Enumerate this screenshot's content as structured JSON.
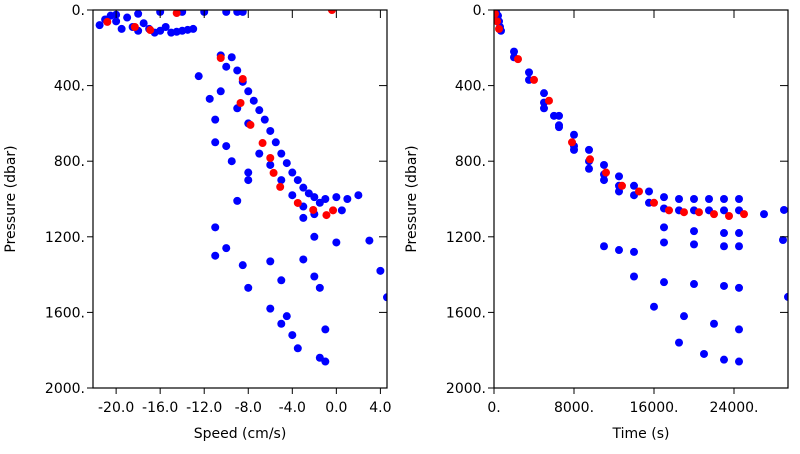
{
  "chart_data": [
    {
      "type": "scatter",
      "xlabel": "Speed (cm/s)",
      "ylabel": "Pressure (dbar)",
      "xlim": [
        -22.1,
        4.6
      ],
      "ylim": [
        0,
        2000
      ],
      "y_inverted": true,
      "xticks": [
        {
          "value": -20,
          "label": "-20.0"
        },
        {
          "value": -16,
          "label": "-16.0"
        },
        {
          "value": -12,
          "label": "-12.0"
        },
        {
          "value": -8,
          "label": "-8.0"
        },
        {
          "value": -4,
          "label": "-4.0"
        },
        {
          "value": 0,
          "label": "0.0"
        },
        {
          "value": 4,
          "label": "4.0"
        }
      ],
      "yticks": [
        {
          "value": 0,
          "label": "0."
        },
        {
          "value": 400,
          "label": "400."
        },
        {
          "value": 800,
          "label": "800."
        },
        {
          "value": 1200,
          "label": "1200."
        },
        {
          "value": 1600,
          "label": "1600."
        },
        {
          "value": 2000,
          "label": "2000."
        }
      ],
      "series": [
        {
          "color": "#0000ff",
          "x": [
            -21.5,
            -21,
            -20.5,
            -20,
            -19.5,
            -19,
            -18.5,
            -18,
            -17.5,
            -17,
            -16.5,
            -16,
            -15.5,
            -15,
            -14.5,
            -14,
            -13.5,
            -13,
            -16,
            -14,
            -12,
            -10,
            -9,
            -8.5,
            -20,
            -18,
            -10.5,
            -9.5,
            -10,
            -9,
            -8.5,
            -8,
            -7.5,
            -7,
            -6.5,
            -6,
            -5.5,
            -5,
            -4.5,
            -4,
            -3.5,
            -3,
            -2.5,
            -2,
            -1,
            0,
            1,
            2,
            0.5,
            -1.5,
            -6,
            -7,
            -5,
            -8,
            -9,
            -4,
            -3,
            -2,
            -12.5,
            -11.5,
            -11,
            -11,
            -10,
            -9.5,
            -10.5,
            -8,
            -8,
            -9,
            -11,
            -10,
            -11,
            -8.5,
            -8,
            -6,
            -5,
            -6,
            -4.5,
            -4,
            -3.5,
            -5,
            -2,
            -3,
            -2,
            -1.5,
            -1,
            -1,
            -1.5,
            0,
            -3,
            3,
            4,
            4.6
          ],
          "values": [
            80,
            50,
            30,
            60,
            100,
            40,
            90,
            110,
            70,
            100,
            120,
            110,
            90,
            120,
            115,
            110,
            105,
            100,
            10,
            10,
            10,
            10,
            10,
            10,
            25,
            20,
            240,
            250,
            300,
            320,
            380,
            430,
            480,
            530,
            580,
            640,
            700,
            760,
            810,
            860,
            900,
            940,
            970,
            990,
            1000,
            990,
            1000,
            980,
            1060,
            1020,
            820,
            760,
            900,
            600,
            520,
            980,
            1040,
            1080,
            350,
            470,
            580,
            700,
            720,
            800,
            430,
            860,
            900,
            1010,
            1150,
            1260,
            1300,
            1350,
            1470,
            1330,
            1430,
            1580,
            1620,
            1720,
            1790,
            1660,
            1410,
            1320,
            1200,
            1470,
            1690,
            1860,
            1840,
            1230,
            1100,
            1220,
            1380,
            1520
          ]
        },
        {
          "color": "#ff0000",
          "x": [
            -20.8,
            -18.3,
            -16.9,
            -14.5,
            -10.5,
            -8.5,
            -8.7,
            -7.8,
            -6.7,
            -6,
            -5.7,
            -5.1,
            -3.5,
            -2.1,
            -0.9,
            -0.4,
            -0.3
          ],
          "values": [
            63,
            90,
            106,
            16,
            254,
            365,
            492,
            608,
            704,
            783,
            862,
            936,
            1021,
            1058,
            1085,
            0,
            1060
          ]
        }
      ]
    },
    {
      "type": "scatter",
      "xlabel": "Time (s)",
      "ylabel": "Pressure (dbar)",
      "xlim": [
        0,
        29400
      ],
      "ylim": [
        0,
        2000
      ],
      "y_inverted": true,
      "xticks": [
        {
          "value": 0,
          "label": "0."
        },
        {
          "value": 8000,
          "label": "8000."
        },
        {
          "value": 16000,
          "label": "16000."
        },
        {
          "value": 24000,
          "label": "24000."
        }
      ],
      "yticks": [
        {
          "value": 0,
          "label": "0."
        },
        {
          "value": 400,
          "label": "400."
        },
        {
          "value": 800,
          "label": "800."
        },
        {
          "value": 1200,
          "label": "1200."
        },
        {
          "value": 1600,
          "label": "1600."
        },
        {
          "value": 2000,
          "label": "2000."
        }
      ],
      "series": [
        {
          "color": "#0000ff",
          "x": [
            200,
            300,
            400,
            500,
            600,
            700,
            2000,
            3500,
            5000,
            6500,
            8000,
            9500,
            11000,
            12500,
            14000,
            15500,
            17000,
            18500,
            20000,
            21500,
            23000,
            24500,
            2000,
            3500,
            5000,
            6500,
            8000,
            9500,
            11000,
            12500,
            14000,
            15500,
            17000,
            18500,
            20000,
            21500,
            23000,
            24500,
            17000,
            20000,
            23000,
            24500,
            11000,
            12500,
            14000,
            17000,
            20000,
            23000,
            24500,
            14000,
            17000,
            20000,
            23000,
            24500,
            16000,
            19000,
            22000,
            24500,
            18500,
            21000,
            23000,
            24500,
            5000,
            6000,
            6500,
            8000,
            9500,
            11000,
            12500,
            27000,
            29000,
            28900,
            29400
          ],
          "values": [
            10,
            50,
            30,
            60,
            90,
            110,
            220,
            330,
            440,
            560,
            660,
            740,
            820,
            880,
            930,
            960,
            990,
            1000,
            1000,
            1000,
            1000,
            1000,
            250,
            370,
            490,
            610,
            720,
            800,
            870,
            930,
            980,
            1020,
            1050,
            1060,
            1060,
            1060,
            1060,
            1060,
            1150,
            1170,
            1180,
            1180,
            1250,
            1270,
            1280,
            1230,
            1240,
            1250,
            1250,
            1410,
            1440,
            1450,
            1460,
            1470,
            1570,
            1620,
            1660,
            1690,
            1760,
            1820,
            1850,
            1860,
            520,
            560,
            620,
            740,
            840,
            900,
            960,
            1080,
            1058,
            1217,
            1518
          ]
        },
        {
          "color": "#ff0000",
          "x": [
            100,
            300,
            500,
            2400,
            4000,
            5500,
            7800,
            9600,
            11200,
            12800,
            14500,
            16000,
            17500,
            19000,
            20500,
            22000,
            23500,
            25000
          ],
          "values": [
            20,
            60,
            100,
            260,
            370,
            480,
            700,
            790,
            860,
            930,
            960,
            1020,
            1060,
            1070,
            1070,
            1080,
            1090,
            1080
          ]
        }
      ]
    }
  ]
}
